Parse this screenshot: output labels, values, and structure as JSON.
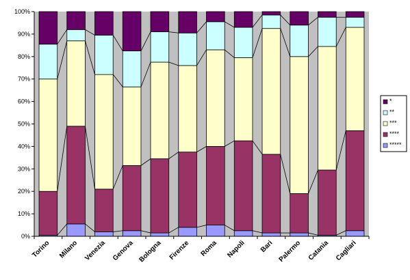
{
  "chart_data": {
    "type": "bar",
    "stacked": true,
    "percent": true,
    "categories": [
      "Torino",
      "Milano",
      "Venezia",
      "Genova",
      "Bologna",
      "Firenze",
      "Roma",
      "Napoli",
      "Bari",
      "Palermo",
      "Catania",
      "Cagliari"
    ],
    "series": [
      {
        "name": "*****",
        "color": "#9999FF",
        "values": [
          0.5,
          5.5,
          2.0,
          2.5,
          1.5,
          4.0,
          5.0,
          2.5,
          1.5,
          1.5,
          0.5,
          2.5
        ]
      },
      {
        "name": "****",
        "color": "#993366",
        "values": [
          19.5,
          43.5,
          19.0,
          29.0,
          33.0,
          33.5,
          35.0,
          40.0,
          35.0,
          17.5,
          29.0,
          44.5
        ]
      },
      {
        "name": "***",
        "color": "#FFFFCC",
        "values": [
          50.0,
          38.0,
          51.0,
          35.0,
          43.0,
          38.5,
          43.0,
          37.0,
          56.0,
          61.0,
          55.0,
          46.0
        ]
      },
      {
        "name": "**",
        "color": "#CCFFFF",
        "values": [
          15.5,
          5.0,
          17.5,
          16.0,
          13.5,
          14.5,
          12.5,
          13.5,
          6.0,
          14.0,
          13.0,
          4.5
        ]
      },
      {
        "name": "*",
        "color": "#660066",
        "values": [
          14.5,
          8.0,
          10.5,
          17.5,
          9.0,
          9.5,
          4.5,
          7.0,
          1.5,
          6.0,
          2.5,
          2.5
        ]
      }
    ],
    "y_ticks": [
      "0%",
      "10%",
      "20%",
      "30%",
      "40%",
      "50%",
      "60%",
      "70%",
      "80%",
      "90%",
      "100%"
    ],
    "ylim": [
      0,
      100
    ],
    "legend": {
      "position": "right",
      "order": [
        "*",
        "**",
        "***",
        "****",
        "*****"
      ]
    },
    "plot_background": "#C0C0C0",
    "grid": false,
    "series_lines": true
  }
}
